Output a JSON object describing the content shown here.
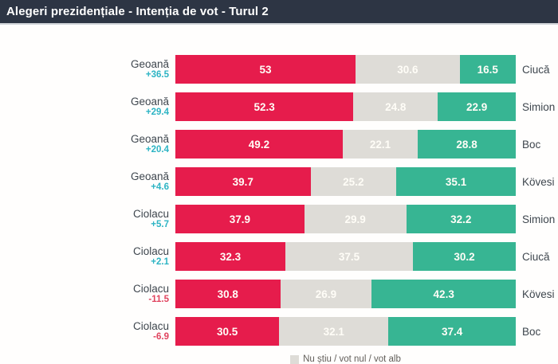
{
  "header": {
    "title": "Alegeri prezidențiale - Intenția de vot - Turul 2"
  },
  "legend": {
    "label": "Nu știu / vot nul / vot alb"
  },
  "colors": {
    "header_bg": "#2d3544",
    "candidate_left": "#e61c4c",
    "undecided": "#dedcd7",
    "candidate_right": "#37b593",
    "delta_positive": "#2db4c4",
    "delta_negative": "#e0445f",
    "label_dark": "#3e464e",
    "value_text": "#fffdf7"
  },
  "chart_data": {
    "type": "bar",
    "orientation": "horizontal-stacked",
    "title": "Alegeri prezidențiale - Intenția de vot - Turul 2",
    "unit": "%",
    "xlim": [
      0,
      100
    ],
    "series": [
      "left_candidate_pct",
      "nu_stiu_vot_nul_vot_alb_pct",
      "right_candidate_pct"
    ],
    "legend": "Nu știu / vot nul / vot alb",
    "legend_position": "bottom-center",
    "rows": [
      {
        "left_candidate": "Geoană",
        "delta": "+36.5",
        "values": [
          53,
          30.6,
          16.5
        ],
        "right_candidate": "Ciucă"
      },
      {
        "left_candidate": "Geoană",
        "delta": "+29.4",
        "values": [
          52.3,
          24.8,
          22.9
        ],
        "right_candidate": "Simion"
      },
      {
        "left_candidate": "Geoană",
        "delta": "+20.4",
        "values": [
          49.2,
          22.1,
          28.8
        ],
        "right_candidate": "Boc"
      },
      {
        "left_candidate": "Geoană",
        "delta": "+4.6",
        "values": [
          39.7,
          25.2,
          35.1
        ],
        "right_candidate": "Kövesi"
      },
      {
        "left_candidate": "Ciolacu",
        "delta": "+5.7",
        "values": [
          37.9,
          29.9,
          32.2
        ],
        "right_candidate": "Simion"
      },
      {
        "left_candidate": "Ciolacu",
        "delta": "+2.1",
        "values": [
          32.3,
          37.5,
          30.2
        ],
        "right_candidate": "Ciucă"
      },
      {
        "left_candidate": "Ciolacu",
        "delta": "-11.5",
        "values": [
          30.8,
          26.9,
          42.3
        ],
        "right_candidate": "Kövesi"
      },
      {
        "left_candidate": "Ciolacu",
        "delta": "-6.9",
        "values": [
          30.5,
          32.1,
          37.4
        ],
        "right_candidate": "Boc"
      }
    ]
  }
}
